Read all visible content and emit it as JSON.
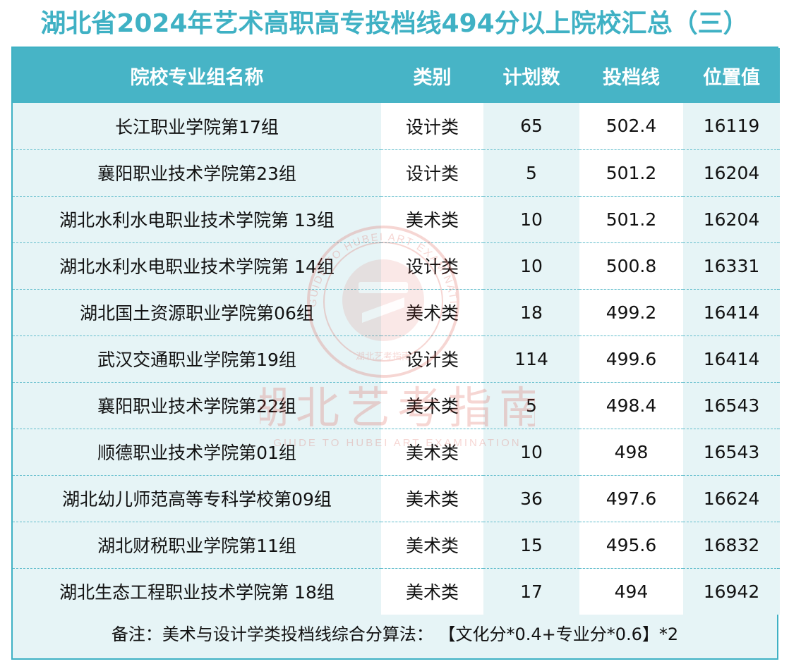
{
  "title": "湖北省2024年艺术高职高专投档线494分以上院校汇总（三）",
  "columns": [
    "院校专业组名称",
    "类别",
    "计划数",
    "投档线",
    "位置值"
  ],
  "rows": [
    [
      "长江职业学院第17组",
      "设计类",
      "65",
      "502.4",
      "16119"
    ],
    [
      "襄阳职业技术学院第23组",
      "设计类",
      "5",
      "501.2",
      "16204"
    ],
    [
      "湖北水利水电职业技术学院第 13组",
      "美术类",
      "10",
      "501.2",
      "16204"
    ],
    [
      "湖北水利水电职业技术学院第 14组",
      "设计类",
      "10",
      "500.8",
      "16331"
    ],
    [
      "湖北国土资源职业学院第06组",
      "美术类",
      "18",
      "499.2",
      "16414"
    ],
    [
      "武汉交通职业学院第19组",
      "设计类",
      "114",
      "499.6",
      "16414"
    ],
    [
      "襄阳职业技术学院第22组",
      "美术类",
      "5",
      "498.4",
      "16543"
    ],
    [
      "顺德职业技术学院第01组",
      "美术类",
      "10",
      "498",
      "16543"
    ],
    [
      "湖北幼儿师范高等专科学校第09组",
      "美术类",
      "36",
      "497.6",
      "16624"
    ],
    [
      "湖北财税职业学院第11组",
      "美术类",
      "15",
      "495.6",
      "16832"
    ],
    [
      "湖北生态工程职业技术学院第 18组",
      "美术类",
      "17",
      "494",
      "16942"
    ]
  ],
  "note": "备注：美术与设计学类投档线综合分算法： 【文化分*0.4+专业分*0.6】*2",
  "watermark": {
    "main_text": "湖北艺考指南",
    "sub_text": "GUIDE TO HUBEI ART EXAMINATION",
    "seal_text": "GUIDE TO HUBEI ART EXAMINATION",
    "seal_small_text": "湖北艺考指南",
    "seal_icon": "seal-emblem-icon"
  },
  "colors": {
    "accent": "#3fb1c4",
    "header_bg": "#47b4c6",
    "band_light": "#e6f4f6",
    "watermark": "#d9473a"
  }
}
